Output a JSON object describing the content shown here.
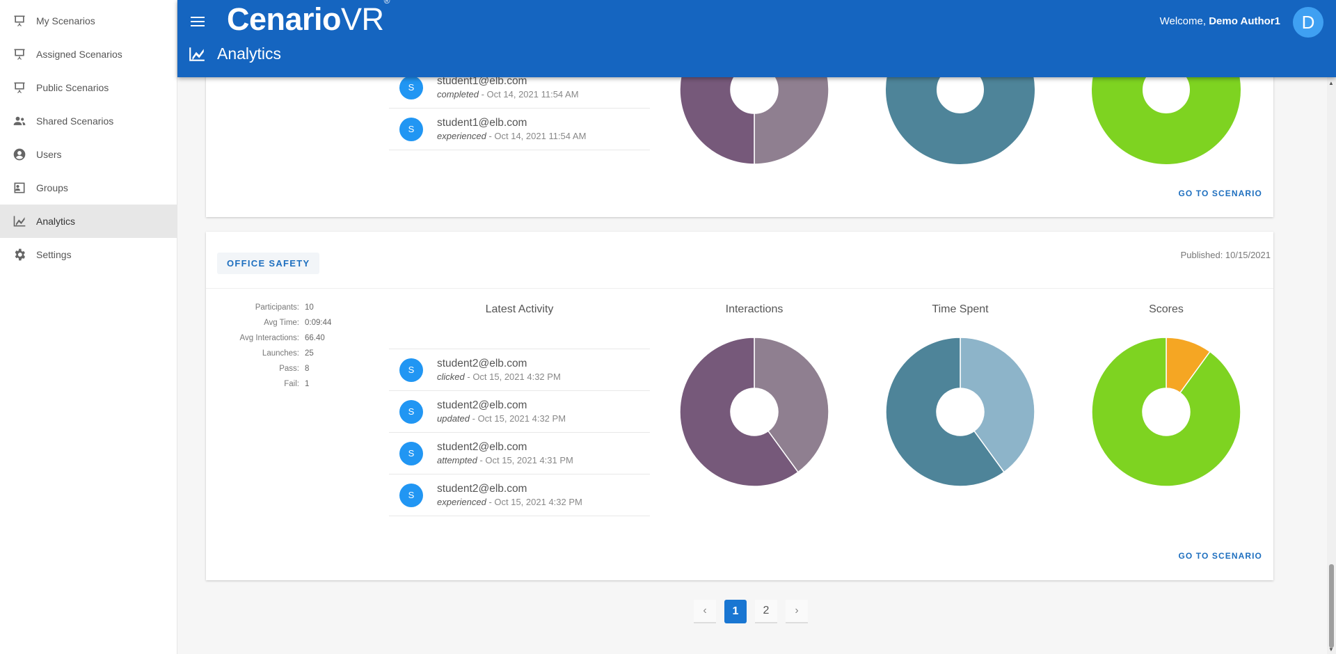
{
  "sidebar": {
    "items": [
      {
        "label": "My Scenarios",
        "icon": "presentation-icon"
      },
      {
        "label": "Assigned Scenarios",
        "icon": "presentation-icon"
      },
      {
        "label": "Public Scenarios",
        "icon": "presentation-icon"
      },
      {
        "label": "Shared Scenarios",
        "icon": "people-icon"
      },
      {
        "label": "Users",
        "icon": "account-circle-icon"
      },
      {
        "label": "Groups",
        "icon": "group-icon"
      },
      {
        "label": "Analytics",
        "icon": "chart-icon",
        "active": true
      },
      {
        "label": "Settings",
        "icon": "gear-icon"
      }
    ]
  },
  "header": {
    "logo_main": "Cenario",
    "logo_vr": "VR",
    "logo_mark": "®",
    "page_title": "Analytics",
    "welcome_prefix": "Welcome,",
    "user_name": "Demo Author1",
    "avatar_letter": "D"
  },
  "card1": {
    "activity": [
      {
        "email": "student1@elb.com",
        "verb": "completed",
        "time": "Oct 14, 2021 11:54 AM"
      },
      {
        "email": "student1@elb.com",
        "verb": "experienced",
        "time": "Oct 14, 2021 11:54 AM"
      }
    ],
    "goto": "GO TO SCENARIO"
  },
  "card2": {
    "scenario_name": "OFFICE SAFETY",
    "published": "Published: 10/15/2021",
    "stats": [
      {
        "k": "Participants:",
        "v": "10"
      },
      {
        "k": "Avg Time:",
        "v": "0:09:44"
      },
      {
        "k": "Avg Interactions:",
        "v": "66.40"
      },
      {
        "k": "Launches:",
        "v": "25"
      },
      {
        "k": "Pass:",
        "v": "8"
      },
      {
        "k": "Fail:",
        "v": "1"
      }
    ],
    "titles": {
      "activity": "Latest Activity",
      "interactions": "Interactions",
      "time": "Time Spent",
      "scores": "Scores"
    },
    "activity": [
      {
        "email": "student2@elb.com",
        "verb": "clicked",
        "time": "Oct 15, 2021 4:32 PM"
      },
      {
        "email": "student2@elb.com",
        "verb": "updated",
        "time": "Oct 15, 2021 4:32 PM"
      },
      {
        "email": "student2@elb.com",
        "verb": "attempted",
        "time": "Oct 15, 2021 4:31 PM"
      },
      {
        "email": "student2@elb.com",
        "verb": "experienced",
        "time": "Oct 15, 2021 4:32 PM"
      }
    ],
    "goto": "GO TO SCENARIO"
  },
  "avatar_letter": "S",
  "pagination": {
    "pages": [
      "1",
      "2"
    ],
    "current": "1",
    "prev": "‹",
    "next": "›"
  },
  "colors": {
    "header": "#1565c0",
    "interactions_a": "#8f7f90",
    "interactions_b": "#76597a",
    "time_a": "#8db4c9",
    "time_b": "#4e8499",
    "scores_a": "#7ed321",
    "scores_b": "#f5a623"
  },
  "chart_data": [
    {
      "type": "pie",
      "name_ref": "card1-interactions",
      "values": [
        50,
        50
      ],
      "colors": [
        "#8f7f90",
        "#76597a"
      ],
      "donut": true
    },
    {
      "type": "pie",
      "name_ref": "card1-time",
      "values": [
        100
      ],
      "colors": [
        "#4e8499"
      ],
      "donut": true
    },
    {
      "type": "pie",
      "name_ref": "card1-scores",
      "values": [
        100
      ],
      "colors": [
        "#7ed321"
      ],
      "donut": true
    },
    {
      "type": "pie",
      "name_ref": "card2-interactions",
      "values": [
        40,
        60
      ],
      "colors": [
        "#8f7f90",
        "#76597a"
      ],
      "donut": true
    },
    {
      "type": "pie",
      "name_ref": "card2-time",
      "values": [
        40,
        60
      ],
      "colors": [
        "#8db4c9",
        "#4e8499"
      ],
      "donut": true
    },
    {
      "type": "pie",
      "name_ref": "card2-scores",
      "values": [
        10,
        90
      ],
      "colors": [
        "#f5a623",
        "#7ed321"
      ],
      "donut": true
    }
  ]
}
